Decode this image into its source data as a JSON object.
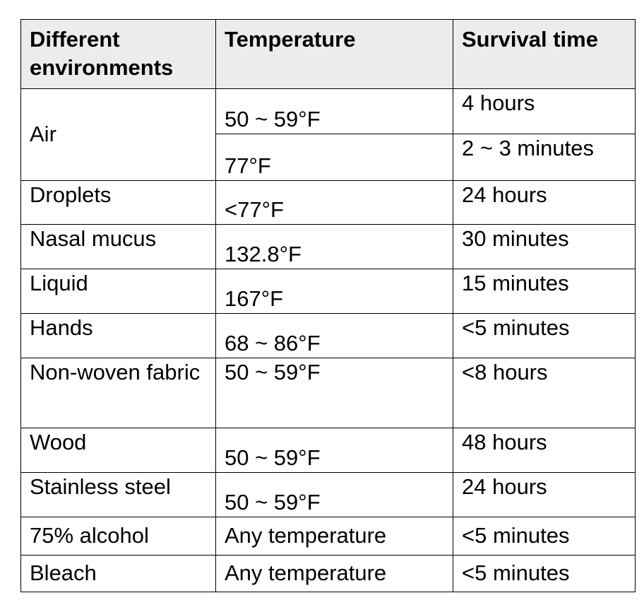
{
  "table": {
    "headers": [
      "Different environments",
      "Temperature",
      "Survival time"
    ],
    "air": {
      "environment": "Air",
      "rows": [
        {
          "temperature": "50 ~ 59°F",
          "survival": "4 hours"
        },
        {
          "temperature": "77°F",
          "survival": "2 ~ 3 minutes"
        }
      ]
    },
    "rows": [
      {
        "environment": "Droplets",
        "temperature": "<77°F",
        "survival": "24 hours"
      },
      {
        "environment": "Nasal mucus",
        "temperature": "132.8°F",
        "survival": "30 minutes"
      },
      {
        "environment": "Liquid",
        "temperature": "167°F",
        "survival": "15 minutes"
      },
      {
        "environment": "Hands",
        "temperature": "68 ~ 86°F",
        "survival": "<5 minutes"
      },
      {
        "environment": "Non-woven fabric",
        "temperature": "50 ~ 59°F",
        "survival": "<8 hours"
      },
      {
        "environment": "Wood",
        "temperature": "50 ~ 59°F",
        "survival": "48 hours"
      },
      {
        "environment": "Stainless steel",
        "temperature": "50 ~ 59°F",
        "survival": "24 hours"
      },
      {
        "environment": "75% alcohol",
        "temperature": "Any temperature",
        "survival": "<5 minutes"
      },
      {
        "environment": "Bleach",
        "temperature": "Any temperature",
        "survival": "<5 minutes"
      }
    ]
  }
}
